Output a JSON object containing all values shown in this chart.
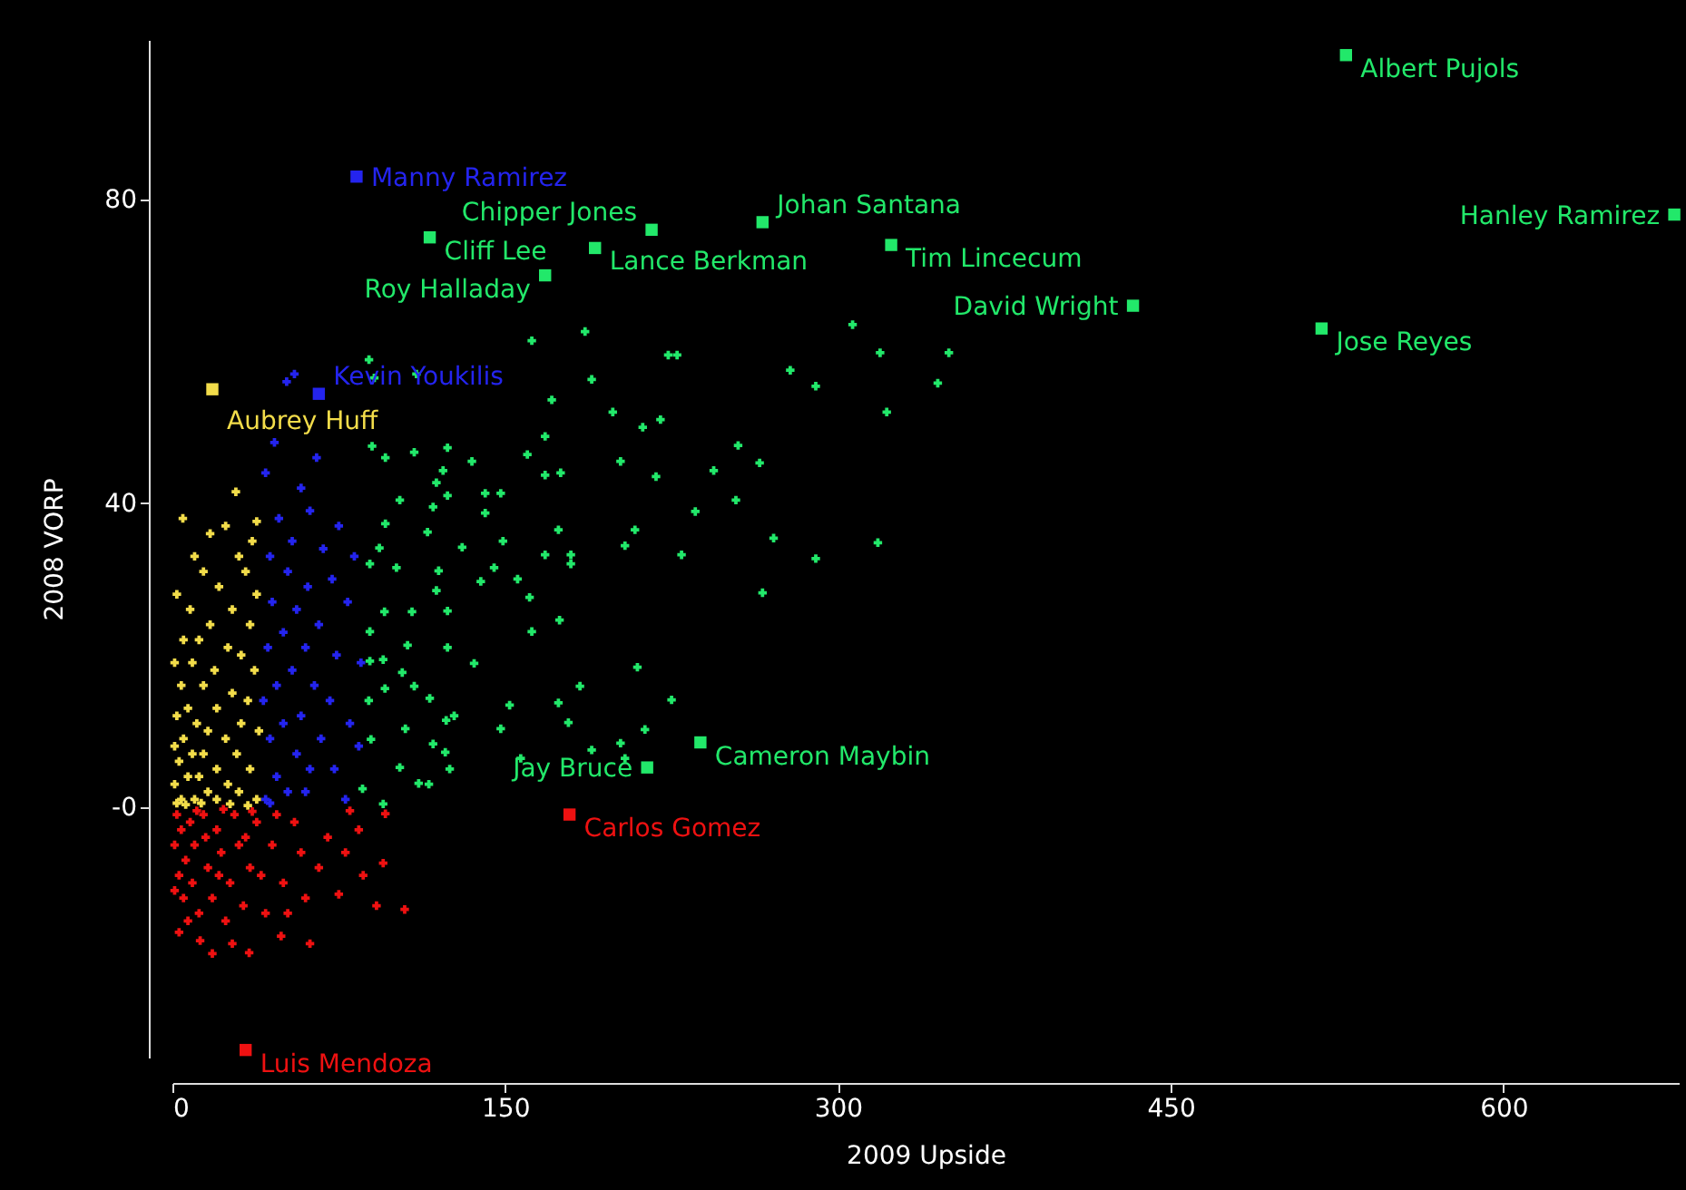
{
  "chart_data": {
    "type": "scatter",
    "xlabel": "2009 Upside",
    "ylabel": "2008 VORP",
    "xlim": [
      0,
      679
    ],
    "ylim": [
      -33,
      101
    ],
    "xticks": [
      0,
      150,
      300,
      450,
      600
    ],
    "yticks": [
      {
        "value": 0,
        "label": "-0"
      },
      40,
      80
    ],
    "grid": false,
    "marker": "cross",
    "series": [
      {
        "color": "#f2dc4a",
        "x": [
          28.6,
          4.7,
          38,
          17,
          24,
          36,
          10,
          30,
          14,
          33,
          2,
          21,
          38,
          8,
          27,
          17,
          35,
          5,
          12,
          25,
          31,
          1,
          9,
          19,
          37,
          4,
          14,
          27,
          34,
          7,
          2,
          20,
          11,
          31,
          16,
          39,
          5,
          24,
          1,
          9,
          14,
          29,
          3,
          20,
          35,
          7,
          12,
          25,
          1,
          16,
          30,
          4,
          10,
          20,
          38,
          2,
          6,
          13,
          26,
          34
        ],
        "values": [
          41.5,
          38,
          37.6,
          36,
          37,
          35,
          33,
          33,
          31,
          31,
          28,
          29,
          28,
          26,
          26,
          24,
          24,
          22,
          22,
          21,
          20,
          19,
          19,
          18,
          18,
          16,
          16,
          15,
          14,
          13,
          12,
          13,
          11,
          11,
          10,
          10,
          9,
          9,
          8,
          7,
          7,
          7,
          6,
          5,
          5,
          4,
          4,
          3,
          3,
          2,
          2,
          1,
          1,
          1,
          1,
          0.5,
          0.3,
          0.5,
          0.4,
          0.2
        ]
      },
      {
        "color": "#2424ee",
        "x": [
          46,
          65,
          42,
          58,
          62,
          48,
          75,
          54,
          44,
          68,
          82,
          52,
          61,
          72,
          45,
          56,
          79,
          66,
          50,
          43,
          60,
          74,
          85,
          54,
          47,
          64,
          71,
          41,
          58,
          80,
          50,
          67,
          44,
          84,
          56,
          62,
          73,
          47,
          52,
          42,
          60,
          78,
          44,
          51.5,
          55
        ],
        "values": [
          48,
          46,
          44,
          42,
          39,
          38,
          37,
          35,
          33,
          34,
          33,
          31,
          29,
          30,
          27,
          26,
          27,
          24,
          23,
          21,
          21,
          20,
          19,
          18,
          16,
          16,
          14,
          14,
          12,
          11,
          11,
          9,
          9,
          8,
          7,
          5,
          5,
          4,
          2,
          1,
          2,
          1,
          0.5,
          56,
          57
        ]
      },
      {
        "color": "#22e86a",
        "x": [
          306.6,
          350,
          319,
          223.5,
          227.5,
          186,
          162,
          278.5,
          345,
          290,
          322,
          88.6,
          91,
          110,
          189,
          171,
          198.5,
          212,
          220,
          168,
          255,
          264.7,
          202,
          244,
          218,
          168,
          175,
          160,
          135,
          124,
          90,
          96,
          109,
          122,
          119,
          102.5,
          141,
          148,
          124,
          117.5,
          141,
          254,
          235.7,
          318,
          290,
          271,
          229.5,
          208.5,
          204,
          179.6,
          179.6,
          168,
          174,
          149,
          130.6,
          96,
          93.3,
          115,
          89,
          101,
          120,
          145,
          155.6,
          139,
          119,
          161,
          266,
          174.5,
          162,
          124,
          108,
          95.6,
          89,
          106,
          124,
          136,
          95,
          89,
          103.6,
          209.6,
          183.7,
          225,
          95.8,
          109,
          116,
          152,
          174,
          88.5,
          127,
          123.4,
          178.5,
          105,
          148,
          213,
          189,
          202,
          204,
          157,
          89.5,
          117.5,
          123,
          102.5,
          125,
          111,
          115.6,
          85.7,
          95
        ],
        "values": [
          63.5,
          59.8,
          59.8,
          59.5,
          59.5,
          62.6,
          61.4,
          57.5,
          55.8,
          55.4,
          52,
          58.9,
          56.5,
          57,
          56.3,
          53.6,
          52,
          50,
          51,
          48.8,
          47.6,
          45.3,
          45.5,
          44.3,
          43.5,
          43.7,
          44,
          46.4,
          45.5,
          47.3,
          47.5,
          46,
          46.7,
          44.3,
          42.7,
          40.4,
          41.3,
          41.3,
          41,
          39.5,
          38.7,
          40.4,
          38.9,
          34.8,
          32.7,
          35.4,
          33.2,
          36.5,
          34.4,
          33.2,
          32,
          33.2,
          36.5,
          35,
          34.2,
          37.3,
          34.1,
          36.2,
          32,
          31.5,
          31.1,
          31.5,
          30,
          29.7,
          28.5,
          27.6,
          28.2,
          24.6,
          23.1,
          25.8,
          25.7,
          25.7,
          23.1,
          21.3,
          21,
          18.9,
          19.4,
          19.2,
          17.7,
          18.4,
          15.9,
          14.1,
          15.6,
          15.9,
          14.3,
          13.4,
          13.7,
          14,
          12,
          11.4,
          11.1,
          10.3,
          10.3,
          10.2,
          7.5,
          8.4,
          6.4,
          6.4,
          8.9,
          8.3,
          7.2,
          5.2,
          5,
          3.1,
          3,
          2.4,
          0.4
        ]
      },
      {
        "color": "#ee1111",
        "x": [
          104.7,
          92,
          96,
          95,
          75,
          62,
          49,
          34.6,
          18,
          27,
          12.5,
          3,
          70,
          78,
          84,
          66,
          58,
          55,
          60,
          50,
          45,
          42,
          38,
          35,
          32,
          30,
          28,
          26,
          24,
          22,
          20,
          18,
          16,
          14,
          12,
          10,
          9,
          8,
          6,
          5,
          4,
          3,
          2,
          1,
          1,
          7,
          15,
          21,
          33,
          40,
          47,
          52,
          86,
          80,
          11,
          23,
          36
        ],
        "values": [
          -13.5,
          -13,
          -0.9,
          -7.4,
          -11.5,
          -18,
          -17,
          -19.2,
          -19.3,
          -18,
          -17.6,
          -16.5,
          -4,
          -6,
          -3,
          -8,
          -6,
          -2,
          -12,
          -10,
          -5,
          -14,
          -2,
          -8,
          -13,
          -5,
          -1,
          -10,
          -15,
          -6,
          -3,
          -12,
          -8,
          -1,
          -14,
          -5,
          -10,
          -2,
          -7,
          -12,
          -3,
          -9,
          -1,
          -5,
          -11,
          -15,
          -4,
          -9,
          -4,
          -9,
          -1,
          -14,
          -9,
          -0.5,
          -0.5,
          -0.3,
          -0.6
        ]
      },
      {
        "name": "Albert Pujols",
        "color": "#22e86a",
        "marker": "square",
        "x": [
          529
        ],
        "values": [
          99
        ]
      },
      {
        "name": "Hanley Ramirez",
        "color": "#22e86a",
        "marker": "square",
        "x": [
          677
        ],
        "values": [
          78
        ]
      },
      {
        "name": "David Wright",
        "color": "#22e86a",
        "marker": "square",
        "x": [
          433
        ],
        "values": [
          66
        ]
      },
      {
        "name": "Jose Reyes",
        "color": "#22e86a",
        "marker": "square",
        "x": [
          518
        ],
        "values": [
          63
        ]
      },
      {
        "name": "Chipper Jones",
        "color": "#22e86a",
        "marker": "square",
        "x": [
          216
        ],
        "values": [
          76
        ]
      },
      {
        "name": "Johan Santana",
        "color": "#22e86a",
        "marker": "square",
        "x": [
          266
        ],
        "values": [
          77
        ]
      },
      {
        "name": "Tim Lincecum",
        "color": "#22e86a",
        "marker": "square",
        "x": [
          324
        ],
        "values": [
          74
        ]
      },
      {
        "name": "Cliff Lee",
        "color": "#22e86a",
        "marker": "square",
        "x": [
          116
        ],
        "values": [
          75
        ]
      },
      {
        "name": "Lance Berkman",
        "color": "#22e86a",
        "marker": "square",
        "x": [
          190.5
        ],
        "values": [
          73.6
        ]
      },
      {
        "name": "Roy Halladay",
        "color": "#22e86a",
        "marker": "square",
        "x": [
          168
        ],
        "values": [
          70
        ]
      },
      {
        "name": "Manny Ramirez",
        "color": "#2424ee",
        "marker": "square",
        "x": [
          83
        ],
        "values": [
          83
        ]
      },
      {
        "name": "Aubrey Huff",
        "color": "#f2dc4a",
        "marker": "square",
        "x": [
          18
        ],
        "values": [
          55
        ]
      },
      {
        "name": "Kevin Youkilis",
        "color": "#2424ee",
        "marker": "square",
        "x": [
          66
        ],
        "values": [
          54.4
        ]
      },
      {
        "name": "Cameron Maybin",
        "color": "#22e86a",
        "marker": "square",
        "x": [
          238
        ],
        "values": [
          8.5
        ]
      },
      {
        "name": "Jay Bruce",
        "color": "#22e86a",
        "marker": "square",
        "x": [
          214
        ],
        "values": [
          5.2
        ]
      },
      {
        "name": "Carlos Gomez",
        "color": "#ee1111",
        "marker": "square",
        "x": [
          179
        ],
        "values": [
          -1
        ]
      },
      {
        "name": "Luis Mendoza",
        "color": "#ee1111",
        "marker": "square",
        "x": [
          33
        ],
        "values": [
          -32
        ]
      }
    ]
  }
}
